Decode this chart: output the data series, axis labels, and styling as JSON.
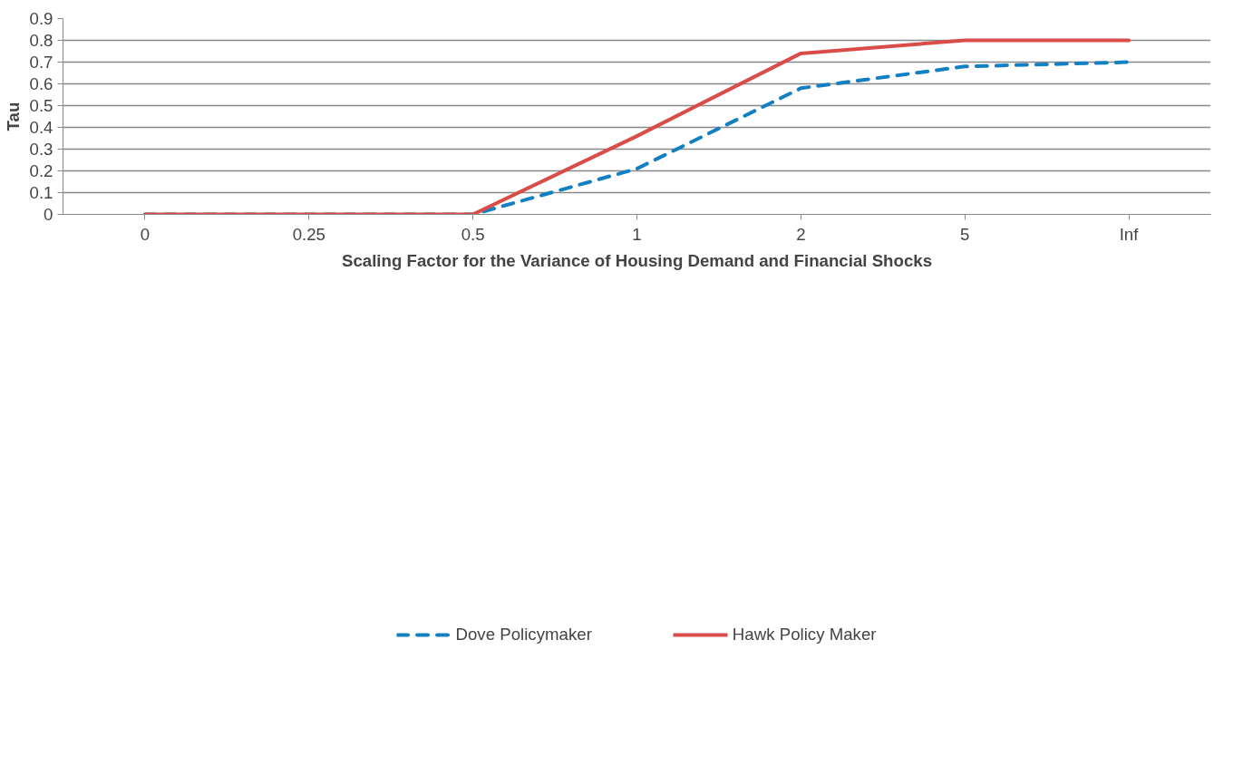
{
  "chart_data": {
    "type": "line",
    "xlabel": "Scaling Factor for the Variance of Housing Demand and Financial Shocks",
    "ylabel": "Tau",
    "categories": [
      "0",
      "0.25",
      "0.5",
      "1",
      "2",
      "5",
      "Inf"
    ],
    "series": [
      {
        "name": "Dove Policymaker",
        "color": "#1380c4",
        "line_style": "dashed",
        "values": [
          0,
          0,
          0,
          0.21,
          0.58,
          0.68,
          0.7
        ]
      },
      {
        "name": "Hawk Policy Maker",
        "color": "#d94c48",
        "line_style": "solid",
        "values": [
          0,
          0,
          0,
          0.36,
          0.74,
          0.8,
          0.8
        ]
      }
    ],
    "ylim": [
      0,
      0.9
    ],
    "yticks": [
      0,
      0.1,
      0.2,
      0.3,
      0.4,
      0.5,
      0.6,
      0.7,
      0.8,
      0.9
    ],
    "grid": "y",
    "legend": "bottom",
    "marker": "none"
  }
}
